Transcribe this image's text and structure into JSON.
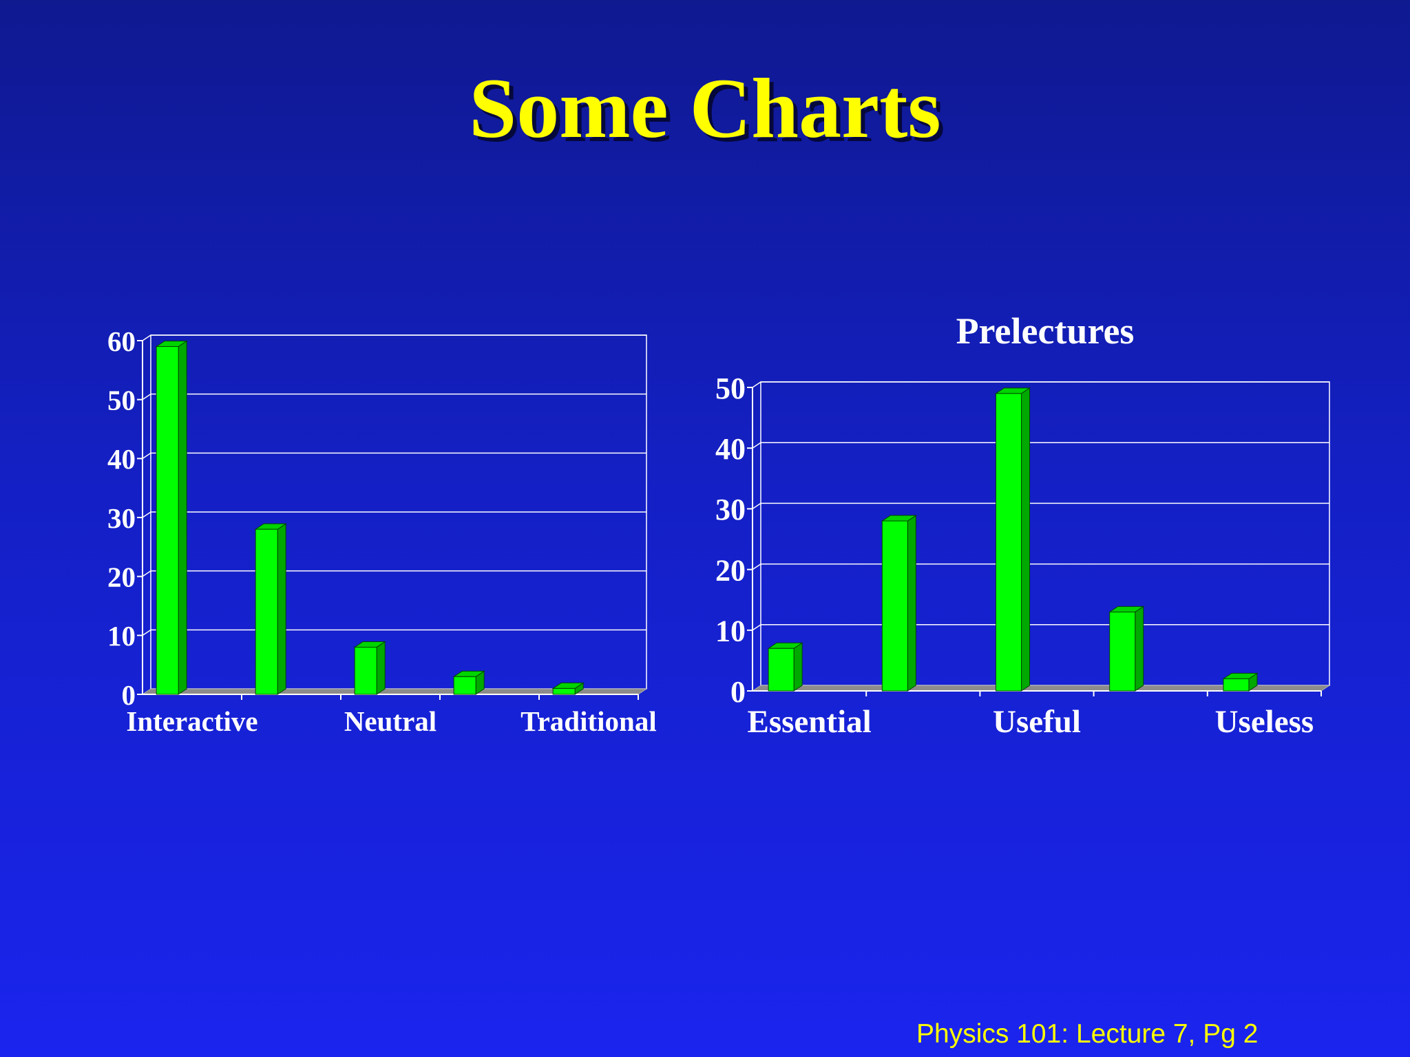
{
  "slide": {
    "title": "Some Charts",
    "footer": "Physics 101: Lecture 7, Pg 2"
  },
  "colors": {
    "background_top": "#0f1990",
    "background_bottom": "#1a24ee",
    "title": "#ffff00",
    "bar_front": "#00ff00",
    "bar_side": "#00a800",
    "bar_top": "#00d400",
    "floor": "#8c8c8c",
    "text": "#ffffff"
  },
  "chart_data": [
    {
      "type": "bar",
      "title": "",
      "categories": [
        "Interactive",
        "",
        "Neutral",
        "",
        "Traditional"
      ],
      "values": [
        59,
        28,
        8,
        3,
        1
      ],
      "ylim": [
        0,
        60
      ],
      "yticks": [
        0,
        10,
        20,
        30,
        40,
        50,
        60
      ],
      "grid": true,
      "legend": "none",
      "xlabel": "",
      "ylabel": ""
    },
    {
      "type": "bar",
      "title": "Prelectures",
      "categories": [
        "Essential",
        "",
        "Useful",
        "",
        "Useless"
      ],
      "values": [
        7,
        28,
        49,
        13,
        2
      ],
      "ylim": [
        0,
        50
      ],
      "yticks": [
        0,
        10,
        20,
        30,
        40,
        50
      ],
      "grid": true,
      "legend": "none",
      "xlabel": "",
      "ylabel": ""
    }
  ]
}
